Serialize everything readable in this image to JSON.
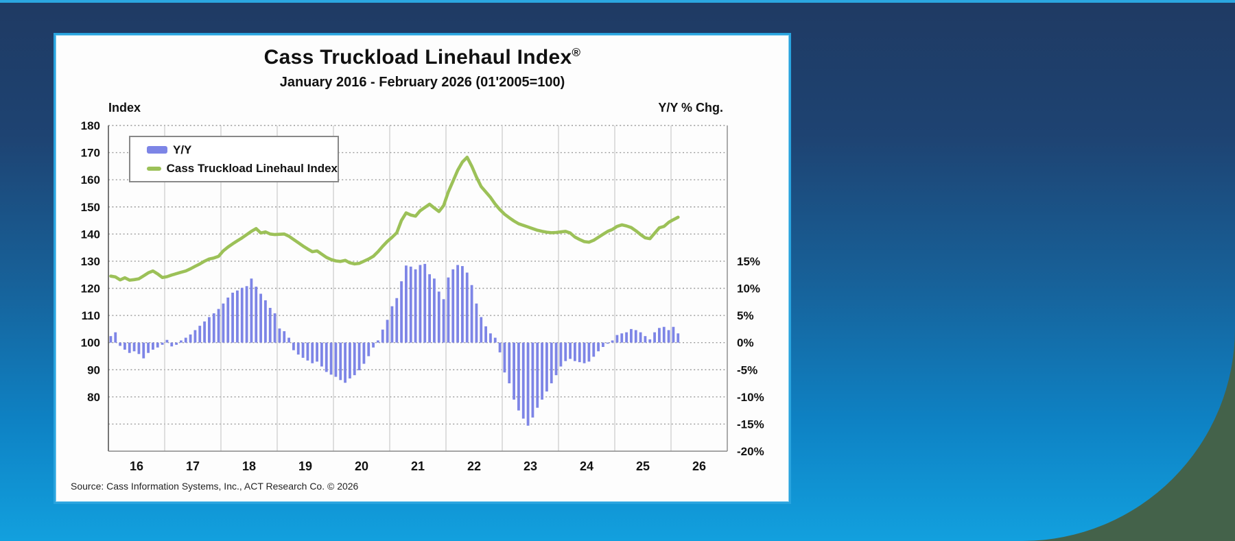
{
  "page": {
    "background_outer_color": "#44624a",
    "panel_gradient_top": "#1f3a63",
    "panel_gradient_bottom": "#12a0de",
    "card_border_color": "#29a4df"
  },
  "chart_data": {
    "type": "bar+line combo",
    "title": "Cass Truckload Linehaul Index",
    "title_registered": "®",
    "subtitle": "January 2016 - February 2026 (01'2005=100)",
    "source": "Source: Cass Information Systems, Inc., ACT Research Co. © 2026",
    "frequency": "monthly",
    "start": "2016-01",
    "end": "2026-02",
    "left_axis": {
      "label": "Index",
      "tick_values": [
        180,
        170,
        160,
        150,
        140,
        130,
        120,
        110,
        100,
        90,
        80
      ],
      "range": [
        60,
        180
      ],
      "gridlines": "dashed horizontal every 10"
    },
    "right_axis": {
      "label": "Y/Y % Chg.",
      "tick_labels": [
        "15%",
        "10%",
        "5%",
        "0%",
        "-5%",
        "-10%",
        "-15%",
        "-20%"
      ],
      "tick_values": [
        15,
        10,
        5,
        0,
        -5,
        -10,
        -15,
        -20
      ],
      "alignment": "0% aligns with Index 100; 5% per 10 index units"
    },
    "x_axis": {
      "tick_labels": [
        "16",
        "17",
        "18",
        "19",
        "20",
        "21",
        "22",
        "23",
        "24",
        "25",
        "26"
      ],
      "gridlines": "solid vertical at year boundaries"
    },
    "legend": [
      {
        "label": "Y/Y",
        "type": "bar",
        "color": "#7d85e6"
      },
      {
        "label": "Cass Truckload Linehaul Index",
        "type": "line",
        "color": "#9cc158"
      }
    ],
    "series": [
      {
        "name": "Y/Y",
        "type": "bar",
        "axis": "right",
        "unit": "%",
        "color": "#7d85e6",
        "values": [
          1.2,
          1.9,
          -0.6,
          -1.3,
          -1.9,
          -1.6,
          -2.1,
          -2.9,
          -1.9,
          -1.3,
          -0.9,
          -0.4,
          0.5,
          -0.7,
          -0.4,
          0.4,
          0.9,
          1.5,
          2.3,
          3.1,
          3.9,
          4.7,
          5.4,
          6.2,
          7.2,
          8.3,
          9.2,
          9.6,
          10.1,
          10.4,
          11.8,
          10.3,
          9.0,
          7.8,
          6.4,
          5.4,
          2.6,
          2.1,
          0.9,
          -1.4,
          -2.2,
          -2.8,
          -3.3,
          -3.8,
          -3.5,
          -4.4,
          -5.4,
          -5.9,
          -6.3,
          -6.9,
          -7.4,
          -6.6,
          -6.0,
          -5.1,
          -3.9,
          -2.5,
          -0.9,
          0.4,
          2.4,
          4.2,
          6.7,
          8.2,
          11.3,
          14.2,
          14.0,
          13.5,
          14.3,
          14.5,
          12.6,
          11.8,
          9.4,
          8.0,
          12.0,
          13.5,
          14.3,
          14.1,
          12.9,
          10.6,
          7.2,
          4.7,
          3.0,
          1.7,
          0.9,
          -1.8,
          -5.5,
          -7.5,
          -10.5,
          -12.5,
          -14.0,
          -15.3,
          -13.8,
          -12.0,
          -10.5,
          -9.0,
          -7.5,
          -6.0,
          -4.4,
          -3.4,
          -3.0,
          -3.4,
          -3.6,
          -3.8,
          -3.5,
          -2.6,
          -1.6,
          -0.8,
          -0.2,
          0.4,
          1.4,
          1.7,
          1.9,
          2.5,
          2.3,
          1.9,
          1.2,
          0.6,
          1.9,
          2.7,
          2.9,
          2.3,
          2.9,
          1.7
        ]
      },
      {
        "name": "Cass Truckload Linehaul Index",
        "type": "line",
        "axis": "left",
        "unit": "index (01'2005=100)",
        "color": "#9cc158",
        "values": [
          124.5,
          124.2,
          123.1,
          123.9,
          123.0,
          123.2,
          123.5,
          124.6,
          125.7,
          126.4,
          125.3,
          124.0,
          124.3,
          124.9,
          125.4,
          125.9,
          126.4,
          127.2,
          128.1,
          129.0,
          130.0,
          130.8,
          131.2,
          131.8,
          133.8,
          135.2,
          136.4,
          137.5,
          138.6,
          139.8,
          141.0,
          142.0,
          140.4,
          140.8,
          140.0,
          139.8,
          139.9,
          140.0,
          139.2,
          138.0,
          136.8,
          135.6,
          134.5,
          133.5,
          133.8,
          132.6,
          131.4,
          130.6,
          130.1,
          129.9,
          130.3,
          129.4,
          129.0,
          129.2,
          130.0,
          130.8,
          131.8,
          133.5,
          135.5,
          137.3,
          138.8,
          140.5,
          145.0,
          147.8,
          147.0,
          146.6,
          148.6,
          149.8,
          151.0,
          149.6,
          148.3,
          150.5,
          155.5,
          159.5,
          163.5,
          166.5,
          168.3,
          165.0,
          161.0,
          157.5,
          155.5,
          153.5,
          151.0,
          149.0,
          147.3,
          146.0,
          144.8,
          143.8,
          143.2,
          142.6,
          142.0,
          141.4,
          141.0,
          140.7,
          140.5,
          140.6,
          140.8,
          141.0,
          140.4,
          138.9,
          138.0,
          137.2,
          137.0,
          137.7,
          138.8,
          139.9,
          141.0,
          141.7,
          142.8,
          143.4,
          143.0,
          142.4,
          141.2,
          139.8,
          138.6,
          138.3,
          140.3,
          142.3,
          142.8,
          144.3,
          145.3,
          146.2
        ]
      }
    ]
  }
}
